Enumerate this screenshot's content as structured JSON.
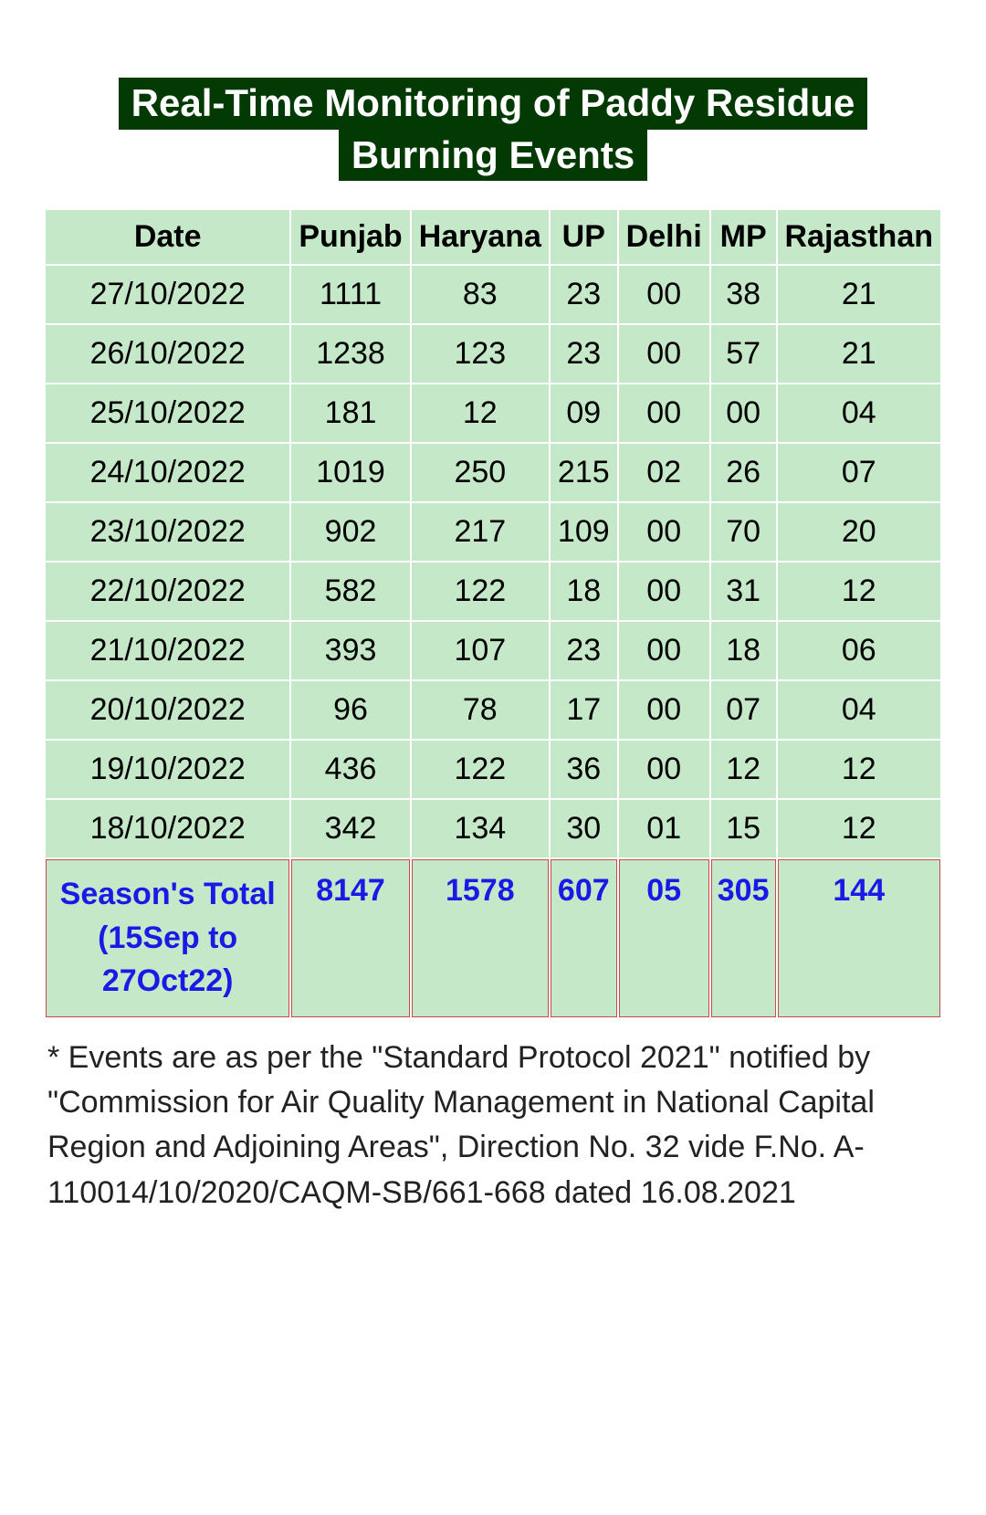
{
  "title": {
    "line1": "Real-Time Monitoring of Paddy Residue",
    "line2": "Burning Events"
  },
  "table": {
    "columns": [
      "Date",
      "Punjab",
      "Haryana",
      "UP",
      "Delhi",
      "MP",
      "Rajasthan"
    ],
    "rows": [
      [
        "27/10/2022",
        "1111",
        "83",
        "23",
        "00",
        "38",
        "21"
      ],
      [
        "26/10/2022",
        "1238",
        "123",
        "23",
        "00",
        "57",
        "21"
      ],
      [
        "25/10/2022",
        "181",
        "12",
        "09",
        "00",
        "00",
        "04"
      ],
      [
        "24/10/2022",
        "1019",
        "250",
        "215",
        "02",
        "26",
        "07"
      ],
      [
        "23/10/2022",
        "902",
        "217",
        "109",
        "00",
        "70",
        "20"
      ],
      [
        "22/10/2022",
        "582",
        "122",
        "18",
        "00",
        "31",
        "12"
      ],
      [
        "21/10/2022",
        "393",
        "107",
        "23",
        "00",
        "18",
        "06"
      ],
      [
        "20/10/2022",
        "96",
        "78",
        "17",
        "00",
        "07",
        "04"
      ],
      [
        "19/10/2022",
        "436",
        "122",
        "36",
        "00",
        "12",
        "12"
      ],
      [
        "18/10/2022",
        "342",
        "134",
        "30",
        "01",
        "15",
        "12"
      ]
    ],
    "total_row": [
      "Season's Total (15Sep to 27Oct22)",
      "8147",
      "1578",
      "607",
      "05",
      "305",
      "144"
    ],
    "colors": {
      "cell_background": "#c5e8c9",
      "title_background": "#033a03",
      "title_text": "#ffffff",
      "total_text": "#1a1ae6",
      "total_border": "#c94a4a",
      "body_text": "#000000"
    },
    "font_sizes": {
      "title": 42,
      "cell": 34,
      "footnote": 34
    }
  },
  "footnote": "* Events are as per the \"Standard Protocol 2021\" notified by \"Commission for Air Quality Management in National Capital Region and Adjoining Areas\", Direction No. 32 vide F.No. A-110014/10/2020/CAQM-SB/661-668 dated 16.08.2021"
}
